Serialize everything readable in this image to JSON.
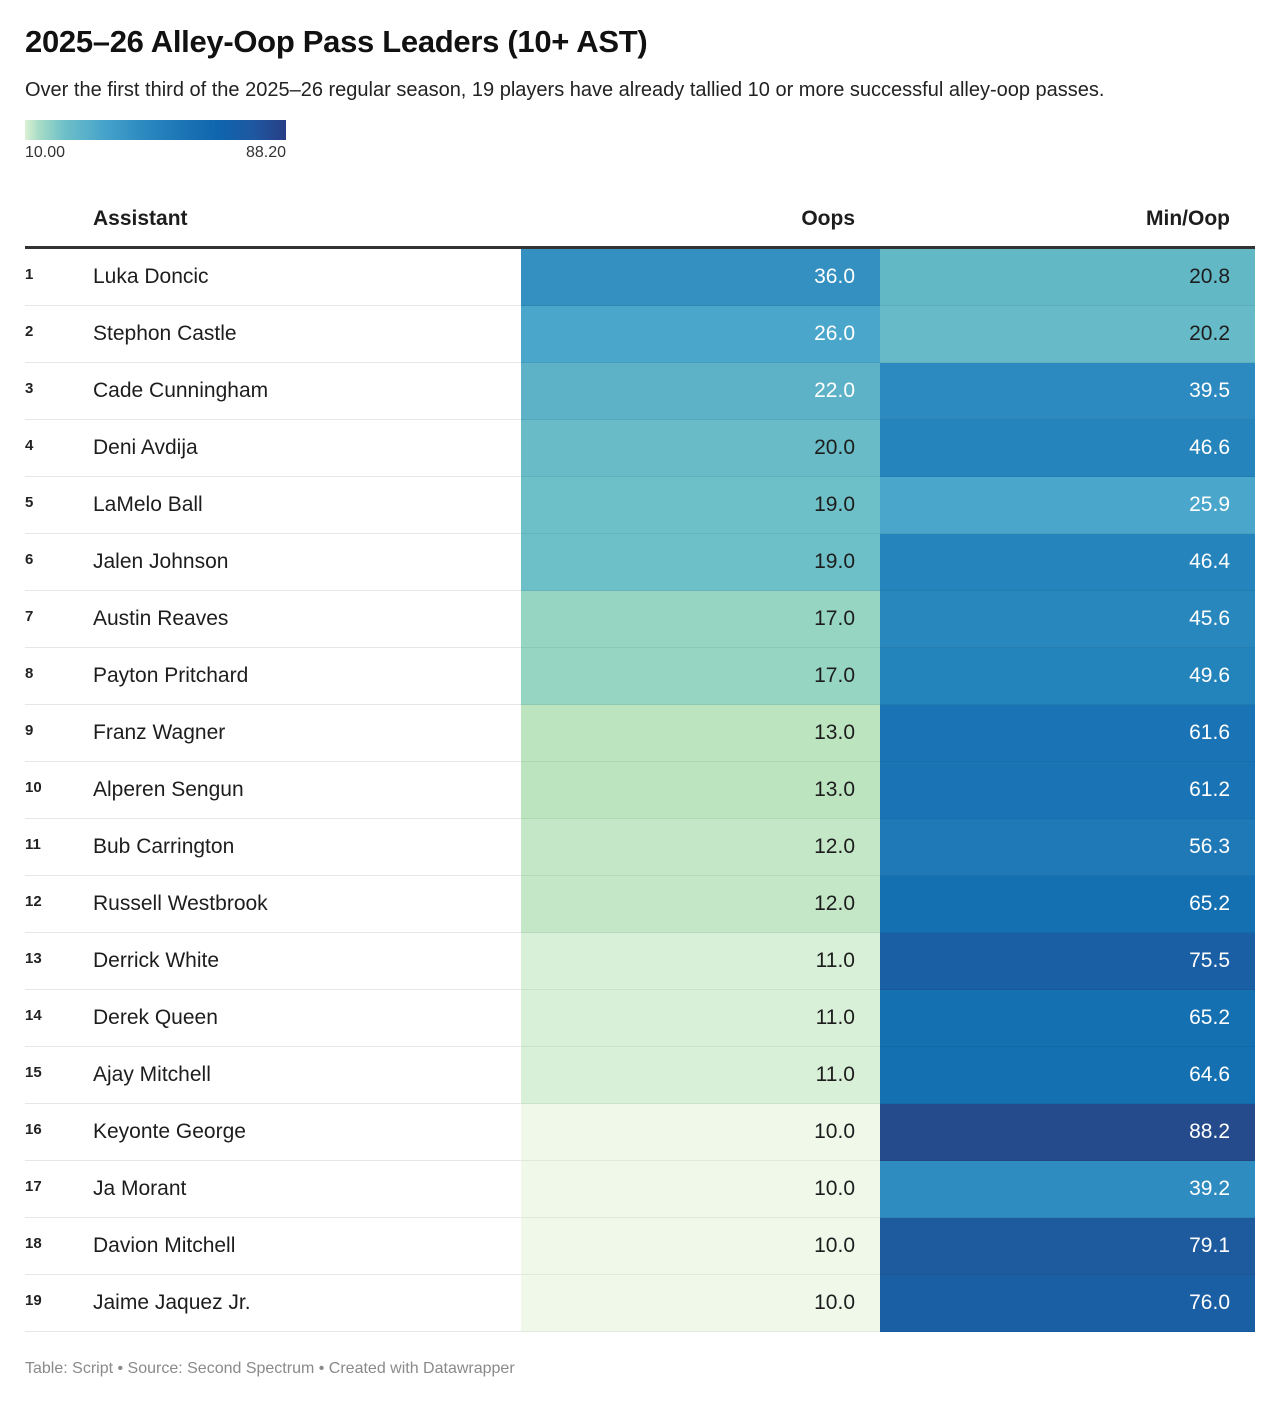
{
  "title": "2025–26 Alley-Oop Pass Leaders (10+ AST)",
  "subtitle": "Over the first third of the 2025–26 regular season, 19 players have already tallied 10 or more successful alley-oop passes.",
  "legend": {
    "min_label": "10.00",
    "max_label": "88.20",
    "min": 10.0,
    "max": 88.2
  },
  "footer": "Table: Script • Source: Second Spectrum • Created with Datawrapper",
  "chart_data": {
    "type": "table",
    "title": "2025–26 Alley-Oop Pass Leaders (10+ AST)",
    "columns": [
      "",
      "Assistant",
      "Oops",
      "Min/Oop"
    ],
    "color_scale": {
      "min": 10.0,
      "max": 88.2,
      "colors": [
        "#dcf1d4",
        "#a9ddc6",
        "#6ec0c8",
        "#47a4cb",
        "#2d8ac0",
        "#1c75b5",
        "#0f64ad",
        "#1f57a0",
        "#273e85"
      ]
    },
    "rows": [
      {
        "rank": "1",
        "name": "Luka Doncic",
        "oops": "36.0",
        "min_oop": "20.8"
      },
      {
        "rank": "2",
        "name": "Stephon Castle",
        "oops": "26.0",
        "min_oop": "20.2"
      },
      {
        "rank": "3",
        "name": "Cade Cunningham",
        "oops": "22.0",
        "min_oop": "39.5"
      },
      {
        "rank": "4",
        "name": "Deni Avdija",
        "oops": "20.0",
        "min_oop": "46.6"
      },
      {
        "rank": "5",
        "name": "LaMelo Ball",
        "oops": "19.0",
        "min_oop": "25.9"
      },
      {
        "rank": "6",
        "name": "Jalen Johnson",
        "oops": "19.0",
        "min_oop": "46.4"
      },
      {
        "rank": "7",
        "name": "Austin Reaves",
        "oops": "17.0",
        "min_oop": "45.6"
      },
      {
        "rank": "8",
        "name": "Payton Pritchard",
        "oops": "17.0",
        "min_oop": "49.6"
      },
      {
        "rank": "9",
        "name": "Franz Wagner",
        "oops": "13.0",
        "min_oop": "61.6"
      },
      {
        "rank": "10",
        "name": "Alperen Sengun",
        "oops": "13.0",
        "min_oop": "61.2"
      },
      {
        "rank": "11",
        "name": "Bub Carrington",
        "oops": "12.0",
        "min_oop": "56.3"
      },
      {
        "rank": "12",
        "name": "Russell Westbrook",
        "oops": "12.0",
        "min_oop": "65.2"
      },
      {
        "rank": "13",
        "name": "Derrick White",
        "oops": "11.0",
        "min_oop": "75.5"
      },
      {
        "rank": "14",
        "name": "Derek Queen",
        "oops": "11.0",
        "min_oop": "65.2"
      },
      {
        "rank": "15",
        "name": "Ajay Mitchell",
        "oops": "11.0",
        "min_oop": "64.6"
      },
      {
        "rank": "16",
        "name": "Keyonte George",
        "oops": "10.0",
        "min_oop": "88.2"
      },
      {
        "rank": "17",
        "name": "Ja Morant",
        "oops": "10.0",
        "min_oop": "39.2"
      },
      {
        "rank": "18",
        "name": "Davion Mitchell",
        "oops": "10.0",
        "min_oop": "79.1"
      },
      {
        "rank": "19",
        "name": "Jaime Jaquez Jr.",
        "oops": "10.0",
        "min_oop": "76.0"
      }
    ]
  },
  "cell_colors": {
    "oops": [
      "#3390c0",
      "#4aa6ca",
      "#5db2c8",
      "#68bbc7",
      "#6ec0c8",
      "#6ec0c8",
      "#96d5c1",
      "#96d5c1",
      "#bce4bf",
      "#bce4bf",
      "#c4e7c8",
      "#c4e7c8",
      "#d9f0d8",
      "#d9f0d8",
      "#d9f0d8",
      "#eff8e9",
      "#eff8e9",
      "#eff8e9",
      "#eff8e9"
    ],
    "min_oop": [
      "#63b8c6",
      "#67bac7",
      "#2d8ac0",
      "#2684bc",
      "#4aa6ca",
      "#2684bc",
      "#2887bd",
      "#2383bb",
      "#1973b4",
      "#1973b4",
      "#1f79b7",
      "#1470b1",
      "#1a5fa3",
      "#1470b1",
      "#1470b1",
      "#254b8c",
      "#2e8cc0",
      "#1e5a9e",
      "#1a5fa3"
    ],
    "oops_text": [
      "#ffffff",
      "#ffffff",
      "#ffffff",
      "#1d1d1d",
      "#1d1d1d",
      "#1d1d1d",
      "#1d1d1d",
      "#1d1d1d",
      "#1d1d1d",
      "#1d1d1d",
      "#1d1d1d",
      "#1d1d1d",
      "#1d1d1d",
      "#1d1d1d",
      "#1d1d1d",
      "#1d1d1d",
      "#1d1d1d",
      "#1d1d1d",
      "#1d1d1d"
    ],
    "min_oop_text": [
      "#1d1d1d",
      "#1d1d1d",
      "#ffffff",
      "#ffffff",
      "#ffffff",
      "#ffffff",
      "#ffffff",
      "#ffffff",
      "#ffffff",
      "#ffffff",
      "#ffffff",
      "#ffffff",
      "#ffffff",
      "#ffffff",
      "#ffffff",
      "#ffffff",
      "#ffffff",
      "#ffffff",
      "#ffffff"
    ]
  }
}
